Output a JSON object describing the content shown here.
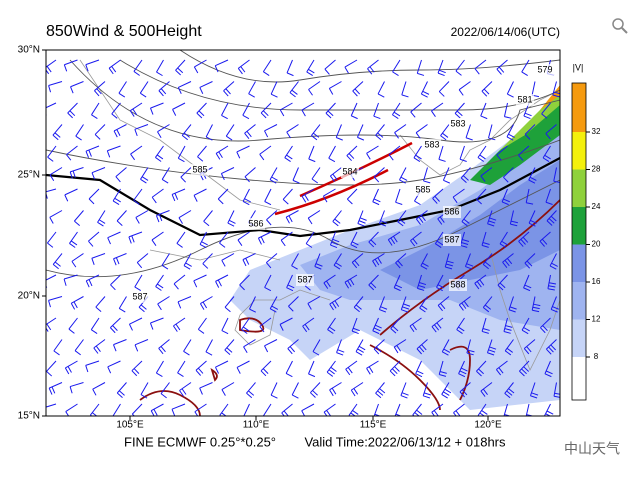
{
  "header": {
    "title": "850Wind & 500Height",
    "init_time": "2022/06/14/06(UTC)"
  },
  "map": {
    "lat_labels": [
      "30°N",
      "25°N",
      "20°N",
      "15°N"
    ],
    "lon_labels": [
      "105°E",
      "110°E",
      "115°E",
      "120°E"
    ],
    "contour_labels": [
      "579",
      "581",
      "583",
      "583",
      "584",
      "585",
      "585",
      "586",
      "586",
      "587",
      "587",
      "588",
      "587"
    ]
  },
  "colorbar": {
    "label": "|V|",
    "ticks": [
      8,
      12,
      16,
      20,
      24,
      28,
      32
    ],
    "colors": [
      "#ffffff",
      "#c6d4f7",
      "#9fb4f0",
      "#7b94e6",
      "#1ea13a",
      "#8fd13c",
      "#f4f00c",
      "#f59a0f"
    ]
  },
  "footer": {
    "model": "FINE ECMWF 0.25°*0.25°",
    "valid_time": "Valid Time:2022/06/13/12 + 018hrs"
  },
  "watermark": "中山天气"
}
